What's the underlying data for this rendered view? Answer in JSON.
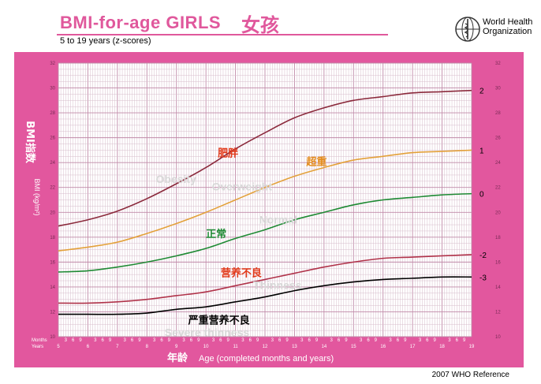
{
  "header": {
    "title": "BMI-for-age  GIRLS",
    "title_cn": "女孩",
    "subtitle": "5 to 19 years (z-scores)",
    "org_name_line1": "World Health",
    "org_name_line2": "Organization",
    "footer": "2007 WHO Reference"
  },
  "chart_data": {
    "type": "line",
    "x_axis": {
      "label": "Age (completed months and years)",
      "label_cn": "年龄",
      "years_label": "Years",
      "months_label": "Months",
      "range": [
        5,
        19
      ],
      "year_ticks": [
        "5",
        "6",
        "7",
        "8",
        "9",
        "10",
        "11",
        "12",
        "13",
        "14",
        "15",
        "16",
        "17",
        "18",
        "19"
      ],
      "month_ticks": [
        "3",
        "6",
        "9"
      ]
    },
    "y_axis": {
      "label": "BMI (kg/m²)",
      "label_cn": "BMI指数",
      "range": [
        10,
        32
      ],
      "ticks": [
        "10",
        "12",
        "14",
        "16",
        "18",
        "20",
        "22",
        "24",
        "26",
        "28",
        "30",
        "32"
      ]
    },
    "grid": true,
    "x": [
      5,
      6,
      7,
      8,
      9,
      10,
      11,
      12,
      13,
      14,
      15,
      16,
      17,
      18,
      19
    ],
    "series": [
      {
        "name": "2",
        "label_cn": "肥胖",
        "label_en": "Obesity",
        "color": "#8b2a3c",
        "values": [
          18.9,
          19.4,
          20.1,
          21.1,
          22.3,
          23.6,
          25.1,
          26.4,
          27.6,
          28.4,
          29.0,
          29.3,
          29.6,
          29.7,
          29.8
        ]
      },
      {
        "name": "1",
        "label_cn": "超重",
        "label_en": "Overweight",
        "color": "#e3a13a",
        "values": [
          16.9,
          17.2,
          17.6,
          18.3,
          19.1,
          20.0,
          21.0,
          22.0,
          22.9,
          23.6,
          24.2,
          24.5,
          24.8,
          24.9,
          25.0
        ]
      },
      {
        "name": "0",
        "label_cn": "正常",
        "label_en": "Normal",
        "color": "#1f8a34",
        "values": [
          15.2,
          15.3,
          15.6,
          16.0,
          16.5,
          17.1,
          17.9,
          18.6,
          19.4,
          20.0,
          20.6,
          21.0,
          21.2,
          21.4,
          21.5
        ]
      },
      {
        "name": "-2",
        "label_cn": "营养不良",
        "label_en": "Thinness",
        "color": "#b0334a",
        "values": [
          12.7,
          12.7,
          12.8,
          13.0,
          13.3,
          13.6,
          14.1,
          14.6,
          15.1,
          15.6,
          16.0,
          16.3,
          16.4,
          16.5,
          16.6
        ]
      },
      {
        "name": "-3",
        "label_cn": "严重营养不良",
        "label_en": "Severe thinness",
        "color": "#000000",
        "values": [
          11.8,
          11.8,
          11.8,
          11.9,
          12.2,
          12.4,
          12.8,
          13.2,
          13.7,
          14.1,
          14.4,
          14.6,
          14.7,
          14.8,
          14.8
        ]
      }
    ]
  }
}
